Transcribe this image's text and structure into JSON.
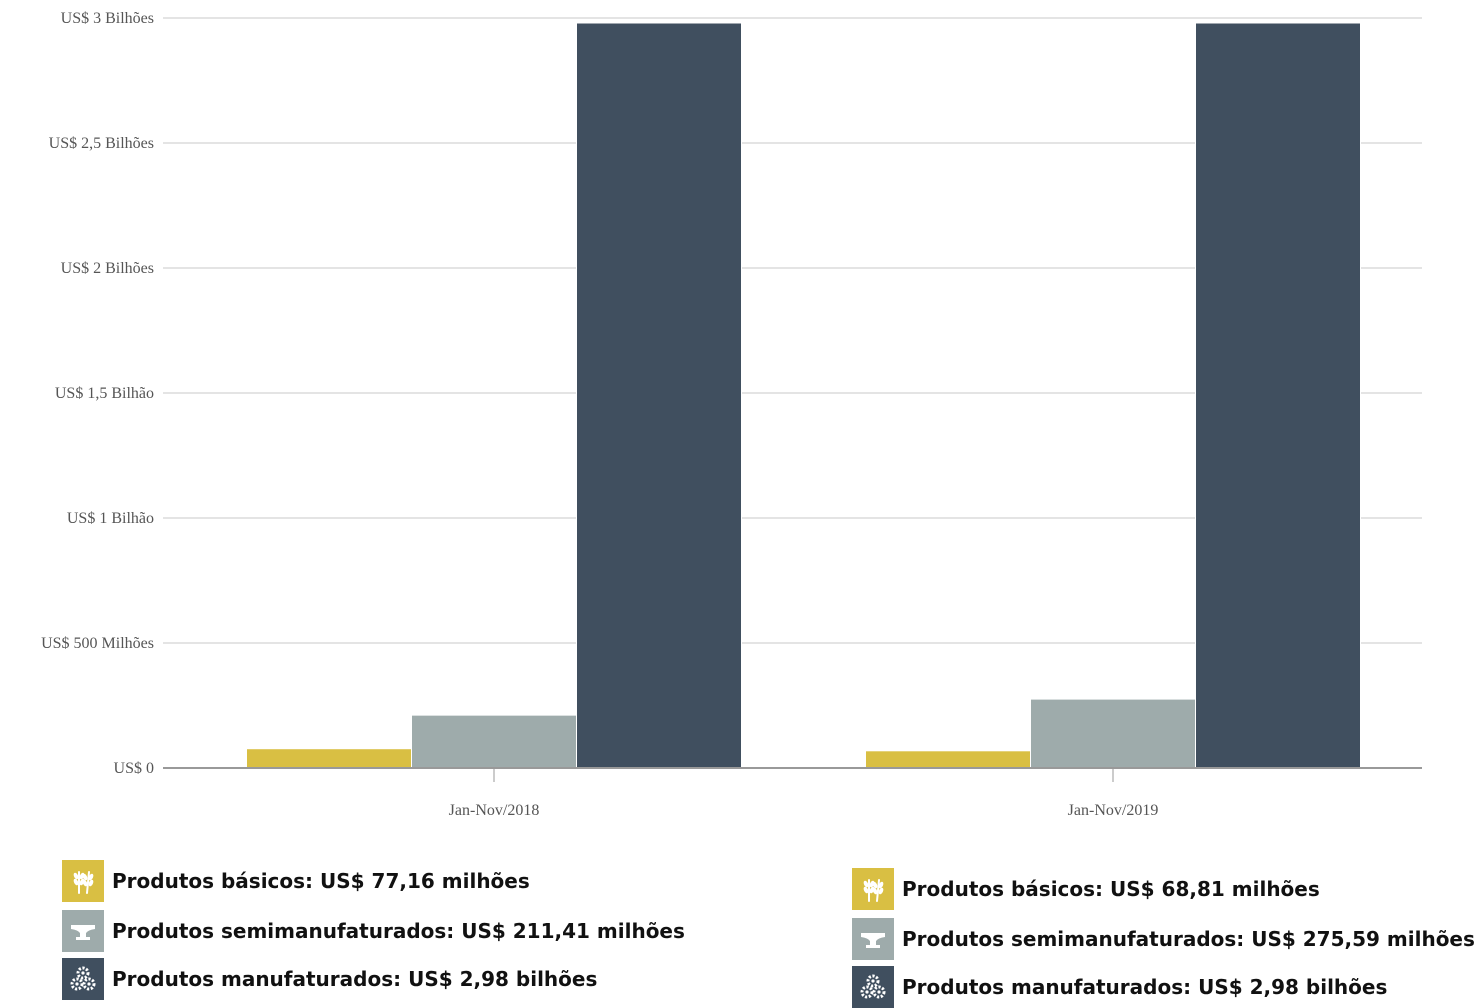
{
  "chart_data": {
    "type": "bar",
    "categories": [
      "Jan-Nov/2018",
      "Jan-Nov/2019"
    ],
    "series": [
      {
        "name": "Produtos básicos",
        "values": [
          77.16,
          68.81
        ],
        "color": "#d9bf43"
      },
      {
        "name": "Produtos semimanufaturados",
        "values": [
          211.41,
          275.59
        ],
        "color": "#9eabab"
      },
      {
        "name": "Produtos manufaturados",
        "values": [
          2980,
          2980
        ],
        "color": "#404f5f"
      }
    ],
    "value_unit": "milhões de US$",
    "ylim": [
      0,
      3000
    ],
    "y_ticks": [
      {
        "value": 0,
        "label": "US$ 0"
      },
      {
        "value": 500,
        "label": "US$ 500 Milhões"
      },
      {
        "value": 1000,
        "label": "US$ 1 Bilhão"
      },
      {
        "value": 1500,
        "label": "US$ 1,5 Bilhão"
      },
      {
        "value": 2000,
        "label": "US$ 2 Bilhões"
      },
      {
        "value": 2500,
        "label": "US$ 2,5 Bilhões"
      },
      {
        "value": 3000,
        "label": "US$ 3 Bilhões"
      }
    ],
    "grid": true,
    "gridline_color": "#dcdcdc",
    "axis_color": "#999999"
  },
  "legends": [
    {
      "items": [
        {
          "icon": "wheat-icon",
          "text": "Produtos básicos: US$ 77,16 milhões"
        },
        {
          "icon": "anvil-icon",
          "text": "Produtos semimanufaturados: US$ 211,41 milhões"
        },
        {
          "icon": "gears-icon",
          "text": "Produtos manufaturados: US$ 2,98 bilhões"
        }
      ]
    },
    {
      "items": [
        {
          "icon": "wheat-icon",
          "text": "Produtos básicos: US$ 68,81 milhões"
        },
        {
          "icon": "anvil-icon",
          "text": "Produtos semimanufaturados: US$ 275,59 milhões"
        },
        {
          "icon": "gears-icon",
          "text": "Produtos manufaturados: US$ 2,98 bilhões"
        }
      ]
    }
  ]
}
